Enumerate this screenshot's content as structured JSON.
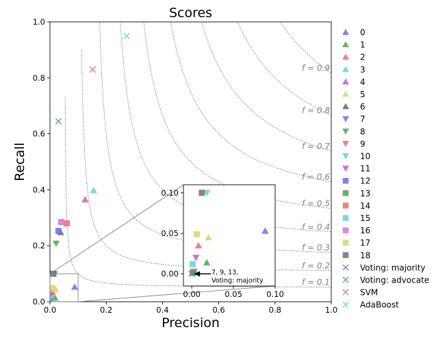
{
  "chart_data": {
    "type": "scatter",
    "title": "Scores",
    "xlabel": "Precision",
    "ylabel": "Recall",
    "xlim": [
      0,
      1
    ],
    "ylim": [
      0,
      1
    ],
    "xticks": [
      "0.0",
      "0.2",
      "0.4",
      "0.6",
      "0.8",
      "1.0"
    ],
    "yticks": [
      "0.0",
      "0.2",
      "0.4",
      "0.6",
      "0.8",
      "1.0"
    ],
    "grid": false,
    "legend_position": "outside-right",
    "f_contours": [
      {
        "f": 0.1,
        "label": "f = 0.1"
      },
      {
        "f": 0.2,
        "label": "f = 0.2"
      },
      {
        "f": 0.3,
        "label": "f = 0.3"
      },
      {
        "f": 0.4,
        "label": "f = 0.4"
      },
      {
        "f": 0.5,
        "label": "f = 0.5"
      },
      {
        "f": 0.6,
        "label": "f = 0.6"
      },
      {
        "f": 0.7,
        "label": "f = 0.7"
      },
      {
        "f": 0.8,
        "label": "f = 0.8"
      },
      {
        "f": 0.9,
        "label": "f = 0.9"
      }
    ],
    "series": [
      {
        "name": "0",
        "marker": "triangle-up",
        "color": "#6c6cf0",
        "x": 0.088,
        "y": 0.053
      },
      {
        "name": "1",
        "marker": "triangle-up",
        "color": "#4aa84a",
        "x": 0.018,
        "y": 0.014
      },
      {
        "name": "2",
        "marker": "triangle-up",
        "color": "#f06a6a",
        "x": 0.008,
        "y": 0.035
      },
      {
        "name": "3",
        "marker": "triangle-up",
        "color": "#5fd4d8",
        "x": 0.155,
        "y": 0.398
      },
      {
        "name": "4",
        "marker": "triangle-up",
        "color": "#c65cc9",
        "x": 0.125,
        "y": 0.365
      },
      {
        "name": "5",
        "marker": "triangle-up",
        "color": "#d6d66a",
        "x": 0.02,
        "y": 0.045
      },
      {
        "name": "6",
        "marker": "triangle-up",
        "color": "#666666",
        "x": 0.038,
        "y": 0.248
      },
      {
        "name": "7",
        "marker": "triangle-down",
        "color": "#6c6cf0",
        "x": 0.003,
        "y": 0.002
      },
      {
        "name": "8",
        "marker": "triangle-down",
        "color": "#4aa84a",
        "x": 0.022,
        "y": 0.208
      },
      {
        "name": "9",
        "marker": "triangle-down",
        "color": "#f06a6a",
        "x": 0.002,
        "y": 0.003
      },
      {
        "name": "10",
        "marker": "triangle-down",
        "color": "#5fd4d8",
        "x": 0.018,
        "y": 0.1
      },
      {
        "name": "11",
        "marker": "triangle-down",
        "color": "#c65cc9",
        "x": 0.005,
        "y": 0.02
      },
      {
        "name": "12",
        "marker": "square",
        "color": "#6c6cf0",
        "x": 0.03,
        "y": 0.253
      },
      {
        "name": "13",
        "marker": "square",
        "color": "#4aa84a",
        "x": 0.001,
        "y": 0.001
      },
      {
        "name": "14",
        "marker": "square",
        "color": "#f06a6a",
        "x": 0.06,
        "y": 0.28
      },
      {
        "name": "15",
        "marker": "square",
        "color": "#5fd4d8",
        "x": 0.001,
        "y": 0.012
      },
      {
        "name": "16",
        "marker": "square",
        "color": "#dd6ddd",
        "x": 0.04,
        "y": 0.285
      },
      {
        "name": "17",
        "marker": "square",
        "color": "#d6d66a",
        "x": 0.006,
        "y": 0.049
      },
      {
        "name": "18",
        "marker": "square",
        "color": "#707070",
        "x": 0.012,
        "y": 0.1
      },
      {
        "name": "Voting: majority",
        "marker": "x",
        "color": "#6c6cf0",
        "x": 0.0,
        "y": 0.0
      },
      {
        "name": "Voting: advocate",
        "marker": "x",
        "color": "#4aa84a",
        "x": 0.03,
        "y": 0.645
      },
      {
        "name": "SVM",
        "marker": "x",
        "color": "#f06a6a",
        "x": 0.152,
        "y": 0.83
      },
      {
        "name": "AdaBoost",
        "marker": "x",
        "color": "#5fd4d8",
        "x": 0.273,
        "y": 0.95
      }
    ],
    "inset": {
      "xlim": [
        -0.01,
        0.1
      ],
      "ylim": [
        -0.015,
        0.11
      ],
      "source_xlim": [
        0,
        0.1
      ],
      "source_ylim": [
        0,
        0.1
      ],
      "xticks": [
        "0.00",
        "0.05",
        "0.10"
      ],
      "yticks": [
        "0.00",
        "0.05",
        "0.10"
      ],
      "annotation": {
        "lines": [
          "7, 9, 13,",
          "Voting: majority"
        ],
        "x": 0.0,
        "y": 0.0
      }
    }
  }
}
